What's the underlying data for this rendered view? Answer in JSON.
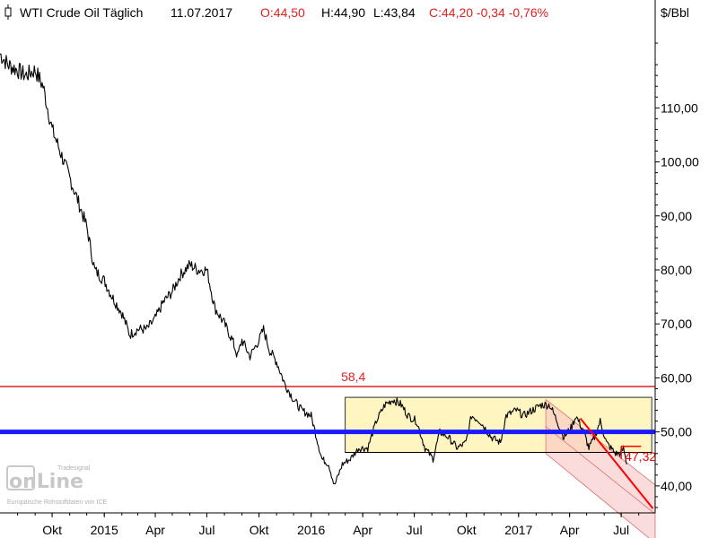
{
  "header": {
    "instrument": "WTI Crude Oil Täglich",
    "date": "11.07.2017",
    "open": "O:44,50",
    "high": "H:44,90",
    "low": "L:43,84",
    "close_change": "C:44,20 -0,34 -0,76%"
  },
  "watermark": {
    "logo_text": "onLine",
    "brand": "Tradesignal",
    "source": "Europäische Rohstoffdaten von ICE"
  },
  "colors": {
    "price": "#000000",
    "resistance": "#e32020",
    "support": "#1a1aff",
    "range_box": "#fff3b0",
    "channel": "#f7c4c4",
    "trendline": "#ff0000"
  },
  "chart_data": {
    "type": "line",
    "y_unit": "$/Bbl",
    "ylim": [
      35,
      124
    ],
    "y_ticks": [
      "110,00",
      "100,00",
      "90,00",
      "80,00",
      "70,00",
      "60,00",
      "50,00",
      "40,00"
    ],
    "y_tick_values": [
      110,
      100,
      90,
      80,
      70,
      60,
      50,
      40
    ],
    "x_ticks": [
      "Okt",
      "2015",
      "Apr",
      "Jul",
      "Okt",
      "2016",
      "Apr",
      "Jul",
      "Okt",
      "2017",
      "Apr",
      "Jul"
    ],
    "x_tick_dates": [
      "2014-10-01",
      "2015-01-01",
      "2015-04-01",
      "2015-07-01",
      "2015-10-01",
      "2016-01-01",
      "2016-04-01",
      "2016-07-01",
      "2016-10-01",
      "2017-01-01",
      "2017-04-01",
      "2017-07-01"
    ],
    "x_range": [
      "2014-07-01",
      "2017-08-30"
    ],
    "grid": false,
    "series": [
      {
        "values_dates": [
          "2014-07-01",
          "2014-07-15",
          "2014-08-01",
          "2014-08-15",
          "2014-09-01",
          "2014-09-15",
          "2014-10-01",
          "2014-10-15",
          "2014-11-01",
          "2014-11-15",
          "2014-12-01",
          "2014-12-15",
          "2015-01-01",
          "2015-01-15",
          "2015-02-01",
          "2015-02-15",
          "2015-03-01",
          "2015-03-17",
          "2015-04-01",
          "2015-04-15",
          "2015-05-01",
          "2015-05-15",
          "2015-06-01",
          "2015-06-15",
          "2015-07-01",
          "2015-07-15",
          "2015-08-01",
          "2015-08-15",
          "2015-08-24",
          "2015-09-01",
          "2015-09-15",
          "2015-10-01",
          "2015-10-09",
          "2015-10-20",
          "2015-11-01",
          "2015-11-15",
          "2015-12-01",
          "2015-12-15",
          "2016-01-01",
          "2016-01-20",
          "2016-02-01",
          "2016-02-11",
          "2016-02-25",
          "2016-03-10",
          "2016-03-25",
          "2016-04-10",
          "2016-04-25",
          "2016-05-10",
          "2016-05-25",
          "2016-06-08",
          "2016-06-20",
          "2016-07-05",
          "2016-07-20",
          "2016-08-03",
          "2016-08-15",
          "2016-08-30",
          "2016-09-15",
          "2016-09-30",
          "2016-10-10",
          "2016-10-25",
          "2016-11-14",
          "2016-11-30",
          "2016-12-10",
          "2016-12-28",
          "2017-01-10",
          "2017-01-25",
          "2017-02-10",
          "2017-02-25",
          "2017-03-10",
          "2017-03-22",
          "2017-04-05",
          "2017-04-12",
          "2017-04-26",
          "2017-05-05",
          "2017-05-15",
          "2017-05-25",
          "2017-06-05",
          "2017-06-21",
          "2017-06-30",
          "2017-07-05",
          "2017-07-11"
        ],
        "values": [
          120,
          118,
          117,
          116,
          117,
          114,
          106,
          102,
          97,
          93,
          88,
          80,
          78,
          75,
          72,
          68,
          69,
          69,
          71,
          74,
          76,
          79,
          81,
          80,
          80,
          73,
          70,
          67,
          64,
          67,
          64,
          67,
          69,
          65,
          63,
          59,
          56,
          54,
          53,
          45,
          44,
          40,
          44,
          45,
          47,
          47,
          52,
          55,
          56,
          55,
          53,
          52,
          47,
          45,
          50,
          49,
          47,
          48,
          53,
          52,
          49,
          48,
          53,
          54,
          53,
          54,
          55,
          55,
          52,
          49,
          51,
          53,
          50,
          47,
          49,
          52,
          48,
          46,
          46,
          47,
          44
        ]
      }
    ],
    "annotations": {
      "resistance_label": "58,4",
      "resistance_value": 58.4,
      "support_value": 50.0,
      "range_box": {
        "x_start": "2016-03-01",
        "x_end": "2017-08-24",
        "y_low": 46.2,
        "y_high": 56.4
      },
      "box_bottom_line_value": 46.2,
      "channel": {
        "x_start": "2017-02-18",
        "x_end": "2017-08-30",
        "upper_start": 56.0,
        "upper_end": 40.2,
        "lower_start": 46.0,
        "lower_end": 29.4
      },
      "trendline": {
        "x_start": "2017-04-20",
        "x_end": "2017-08-26",
        "y_start": 52.5,
        "y_end": 35.8
      },
      "target_label": "47,32",
      "target_value": 47.32,
      "target_marker_x_start": "2017-07-01",
      "target_marker_x_end": "2017-08-05"
    }
  }
}
